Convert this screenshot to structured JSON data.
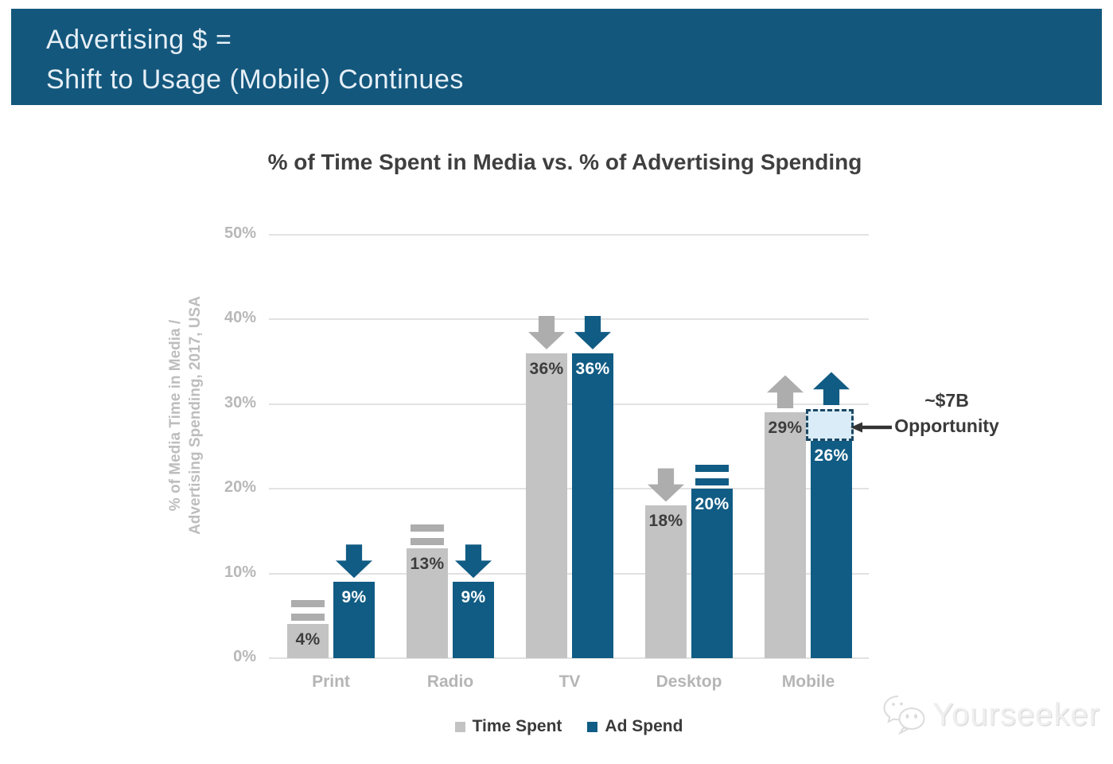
{
  "colors": {
    "header_bg": "#14577D",
    "header_text": "#E6EFF6",
    "grid": "#E2E2E2",
    "axis_text": "#B8B8B8",
    "title_text": "#3F3F3F",
    "annotation_text": "#3A3A3A",
    "annotation_arrow": "#333333",
    "opportunity_fill": "#D9ECF7",
    "opportunity_border": "#1C4965",
    "watermark_text": "#EFEFEF"
  },
  "header": {
    "title_line1": "Advertising $ =",
    "title_line2": "Shift to Usage (Mobile) Continues"
  },
  "chart_data": {
    "type": "bar",
    "title": "% of Time Spent in Media vs. % of Advertising Spending",
    "ylabel": "% of Media Time in Media / Advertising Spending, 2017, USA",
    "ylabel_lines": [
      "% of Media Time in Media /",
      "Advertising Spending, 2017, USA"
    ],
    "xlabel": "",
    "categories": [
      "Print",
      "Radio",
      "TV",
      "Desktop",
      "Mobile"
    ],
    "series": [
      {
        "name": "Time Spent",
        "color": "#C3C3C3",
        "icon_color": "#ADADAD",
        "label_color": "#3D3D3D",
        "values": [
          4,
          13,
          36,
          18,
          29
        ],
        "labels": [
          "4%",
          "13%",
          "36%",
          "18%",
          "29%"
        ],
        "trends": [
          "equals",
          "equals",
          "down",
          "down",
          "up"
        ]
      },
      {
        "name": "Ad Spend",
        "color": "#115C84",
        "icon_color": "#115C84",
        "label_color": "#FFFFFF",
        "values": [
          9,
          9,
          36,
          20,
          26
        ],
        "labels": [
          "9%",
          "9%",
          "36%",
          "20%",
          "26%"
        ],
        "trends": [
          "down",
          "down",
          "down",
          "equals",
          "up"
        ]
      }
    ],
    "yticks": [
      {
        "value": 0,
        "label": "0%"
      },
      {
        "value": 10,
        "label": "10%"
      },
      {
        "value": 20,
        "label": "20%"
      },
      {
        "value": 30,
        "label": "30%"
      },
      {
        "value": 40,
        "label": "40%"
      },
      {
        "value": 50,
        "label": "50%"
      }
    ],
    "ylim": [
      0,
      50
    ],
    "grid": true,
    "legend_position": "bottom"
  },
  "annotation": {
    "line1": "~$7B",
    "line2": "Opportunity",
    "category": "Mobile",
    "series": "Ad Spend",
    "from_value": 26,
    "to_value": 29
  },
  "watermark": {
    "text": "Yourseeker"
  }
}
